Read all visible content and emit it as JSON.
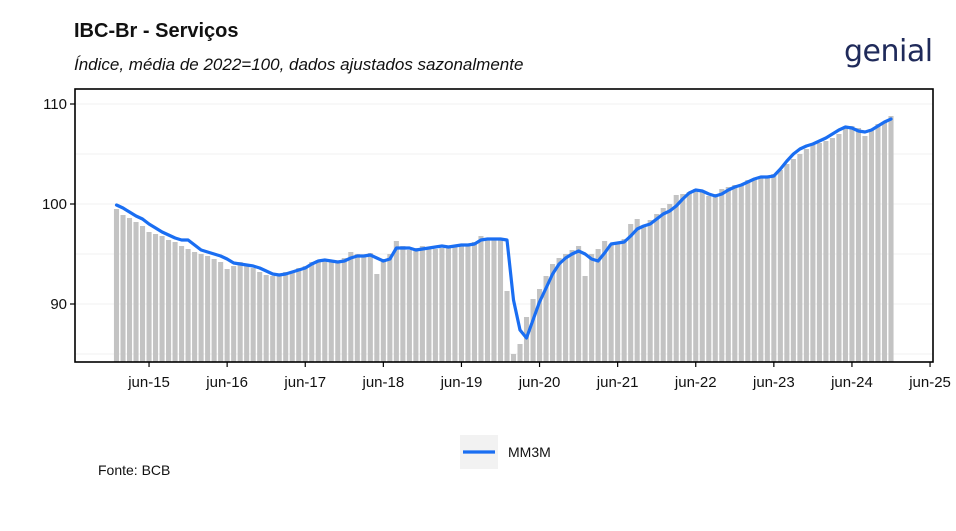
{
  "header": {
    "title": "IBC-Br - Serviços",
    "subtitle": "Índice, média de 2022=100, dados ajustados sazonalmente"
  },
  "logo": {
    "text": "genial"
  },
  "footer": {
    "source": "Fonte: BCB"
  },
  "colors": {
    "bars": "#c3c3c3",
    "line": "#1a6ef2",
    "axis": "#000000",
    "grid": "#f0f0f0",
    "logo": "#1f2a5a"
  },
  "chart_data": {
    "type": "bar",
    "overlay": "line",
    "x_start": "2015-01",
    "x_end": "2025-03",
    "xtick_labels": [
      "jun-15",
      "jun-16",
      "jun-17",
      "jun-18",
      "jun-19",
      "jun-20",
      "jun-21",
      "jun-22",
      "jun-23",
      "jun-24",
      "jun-25"
    ],
    "yticks": [
      90,
      100,
      110
    ],
    "ylim": [
      84.2,
      111.5
    ],
    "legend": {
      "placement": "bottom"
    },
    "series": [
      {
        "type": "bar",
        "values": [
          99.5,
          98.9,
          98.6,
          98.2,
          97.8,
          97.2,
          97.0,
          96.8,
          96.4,
          96.2,
          95.8,
          95.5,
          95.2,
          95.0,
          94.8,
          94.5,
          94.2,
          93.5,
          93.8,
          94.2,
          94.0,
          93.6,
          93.2,
          92.9,
          92.8,
          93.0,
          93.2,
          93.3,
          93.6,
          93.8,
          94.2,
          94.4,
          94.5,
          94.3,
          94.2,
          94.6,
          95.2,
          95.0,
          94.8,
          95.1,
          93.0,
          94.5,
          95.0,
          96.3,
          95.8,
          95.4,
          95.6,
          95.8,
          95.7,
          95.5,
          95.6,
          95.7,
          95.8,
          96.0,
          95.9,
          96.2,
          96.8,
          96.5,
          96.4,
          96.6,
          91.3,
          85.0,
          86.0,
          88.7,
          90.5,
          91.5,
          92.8,
          94.0,
          94.6,
          95.0,
          95.4,
          95.8,
          92.8,
          95.0,
          95.5,
          96.3,
          96.0,
          96.2,
          96.5,
          98.0,
          98.5,
          97.8,
          98.4,
          99.0,
          99.6,
          100.0,
          100.9,
          101.0,
          101.2,
          101.5,
          101.2,
          100.8,
          101.0,
          101.5,
          101.7,
          101.9,
          102.0,
          102.4,
          102.5,
          102.7,
          102.6,
          103.0,
          103.4,
          104.0,
          104.5,
          105.0,
          105.5,
          105.9,
          106.1,
          106.3,
          106.6,
          107.0,
          107.7,
          107.8,
          107.6,
          106.8,
          107.5,
          108.0,
          108.2,
          108.8
        ]
      },
      {
        "type": "line",
        "name": "MM3M",
        "values": [
          99.9,
          99.6,
          99.2,
          98.8,
          98.5,
          98.0,
          97.6,
          97.2,
          96.9,
          96.6,
          96.4,
          96.4,
          95.9,
          95.4,
          95.2,
          95.0,
          94.8,
          94.5,
          94.1,
          94.0,
          93.9,
          93.8,
          93.6,
          93.3,
          93.0,
          92.9,
          93.0,
          93.2,
          93.4,
          93.6,
          94.0,
          94.3,
          94.4,
          94.3,
          94.2,
          94.3,
          94.6,
          94.8,
          94.8,
          94.9,
          94.6,
          94.3,
          94.5,
          95.6,
          95.6,
          95.6,
          95.4,
          95.5,
          95.6,
          95.7,
          95.8,
          95.7,
          95.8,
          95.9,
          95.9,
          96.0,
          96.4,
          96.5,
          96.5,
          96.5,
          96.4,
          90.4,
          87.4,
          86.6,
          88.4,
          90.2,
          91.6,
          93.0,
          94.0,
          94.6,
          95.0,
          95.3,
          95.0,
          94.5,
          94.3,
          95.1,
          96.0,
          96.1,
          96.2,
          96.8,
          97.5,
          97.8,
          98.0,
          98.5,
          99.0,
          99.3,
          99.8,
          100.5,
          101.1,
          101.4,
          101.3,
          101.0,
          100.8,
          101.0,
          101.4,
          101.7,
          101.9,
          102.2,
          102.5,
          102.7,
          102.7,
          102.8,
          103.5,
          104.3,
          105.0,
          105.5,
          105.8,
          106.0,
          106.3,
          106.6,
          107.0,
          107.4,
          107.7,
          107.6,
          107.3,
          107.2,
          107.4,
          107.8,
          108.2,
          108.5
        ]
      }
    ]
  }
}
